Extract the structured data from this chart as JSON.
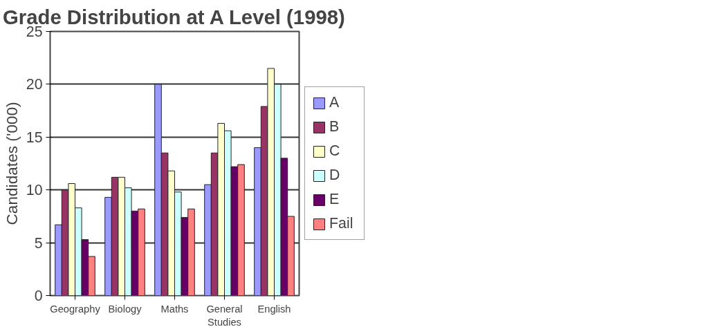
{
  "chart_data": {
    "type": "bar",
    "title": "Grade Distribution at A Level (1998)",
    "ylabel": "Candidates ('000)",
    "categories": [
      "Geography",
      "Biology",
      "Maths",
      "General Studies",
      "English"
    ],
    "series": [
      {
        "name": "A",
        "color": "#9999ff",
        "values": [
          6.7,
          9.3,
          20,
          10.5,
          14
        ]
      },
      {
        "name": "B",
        "color": "#993366",
        "values": [
          10,
          11.2,
          13.5,
          13.5,
          17.9
        ]
      },
      {
        "name": "C",
        "color": "#ffffcc",
        "values": [
          10.6,
          11.2,
          11.8,
          16.3,
          21.5
        ]
      },
      {
        "name": "D",
        "color": "#ccffff",
        "values": [
          8.3,
          10.2,
          9.8,
          15.6,
          20
        ]
      },
      {
        "name": "E",
        "color": "#660066",
        "values": [
          5.3,
          8,
          7.4,
          12.2,
          13
        ]
      },
      {
        "name": "Fail",
        "color": "#ff8080",
        "values": [
          3.7,
          8.2,
          8.2,
          12.4,
          7.5
        ]
      }
    ],
    "ylim": [
      0,
      25
    ],
    "yticks": [
      0,
      5,
      10,
      15,
      20,
      25
    ],
    "grid": "y",
    "legend": "right"
  }
}
